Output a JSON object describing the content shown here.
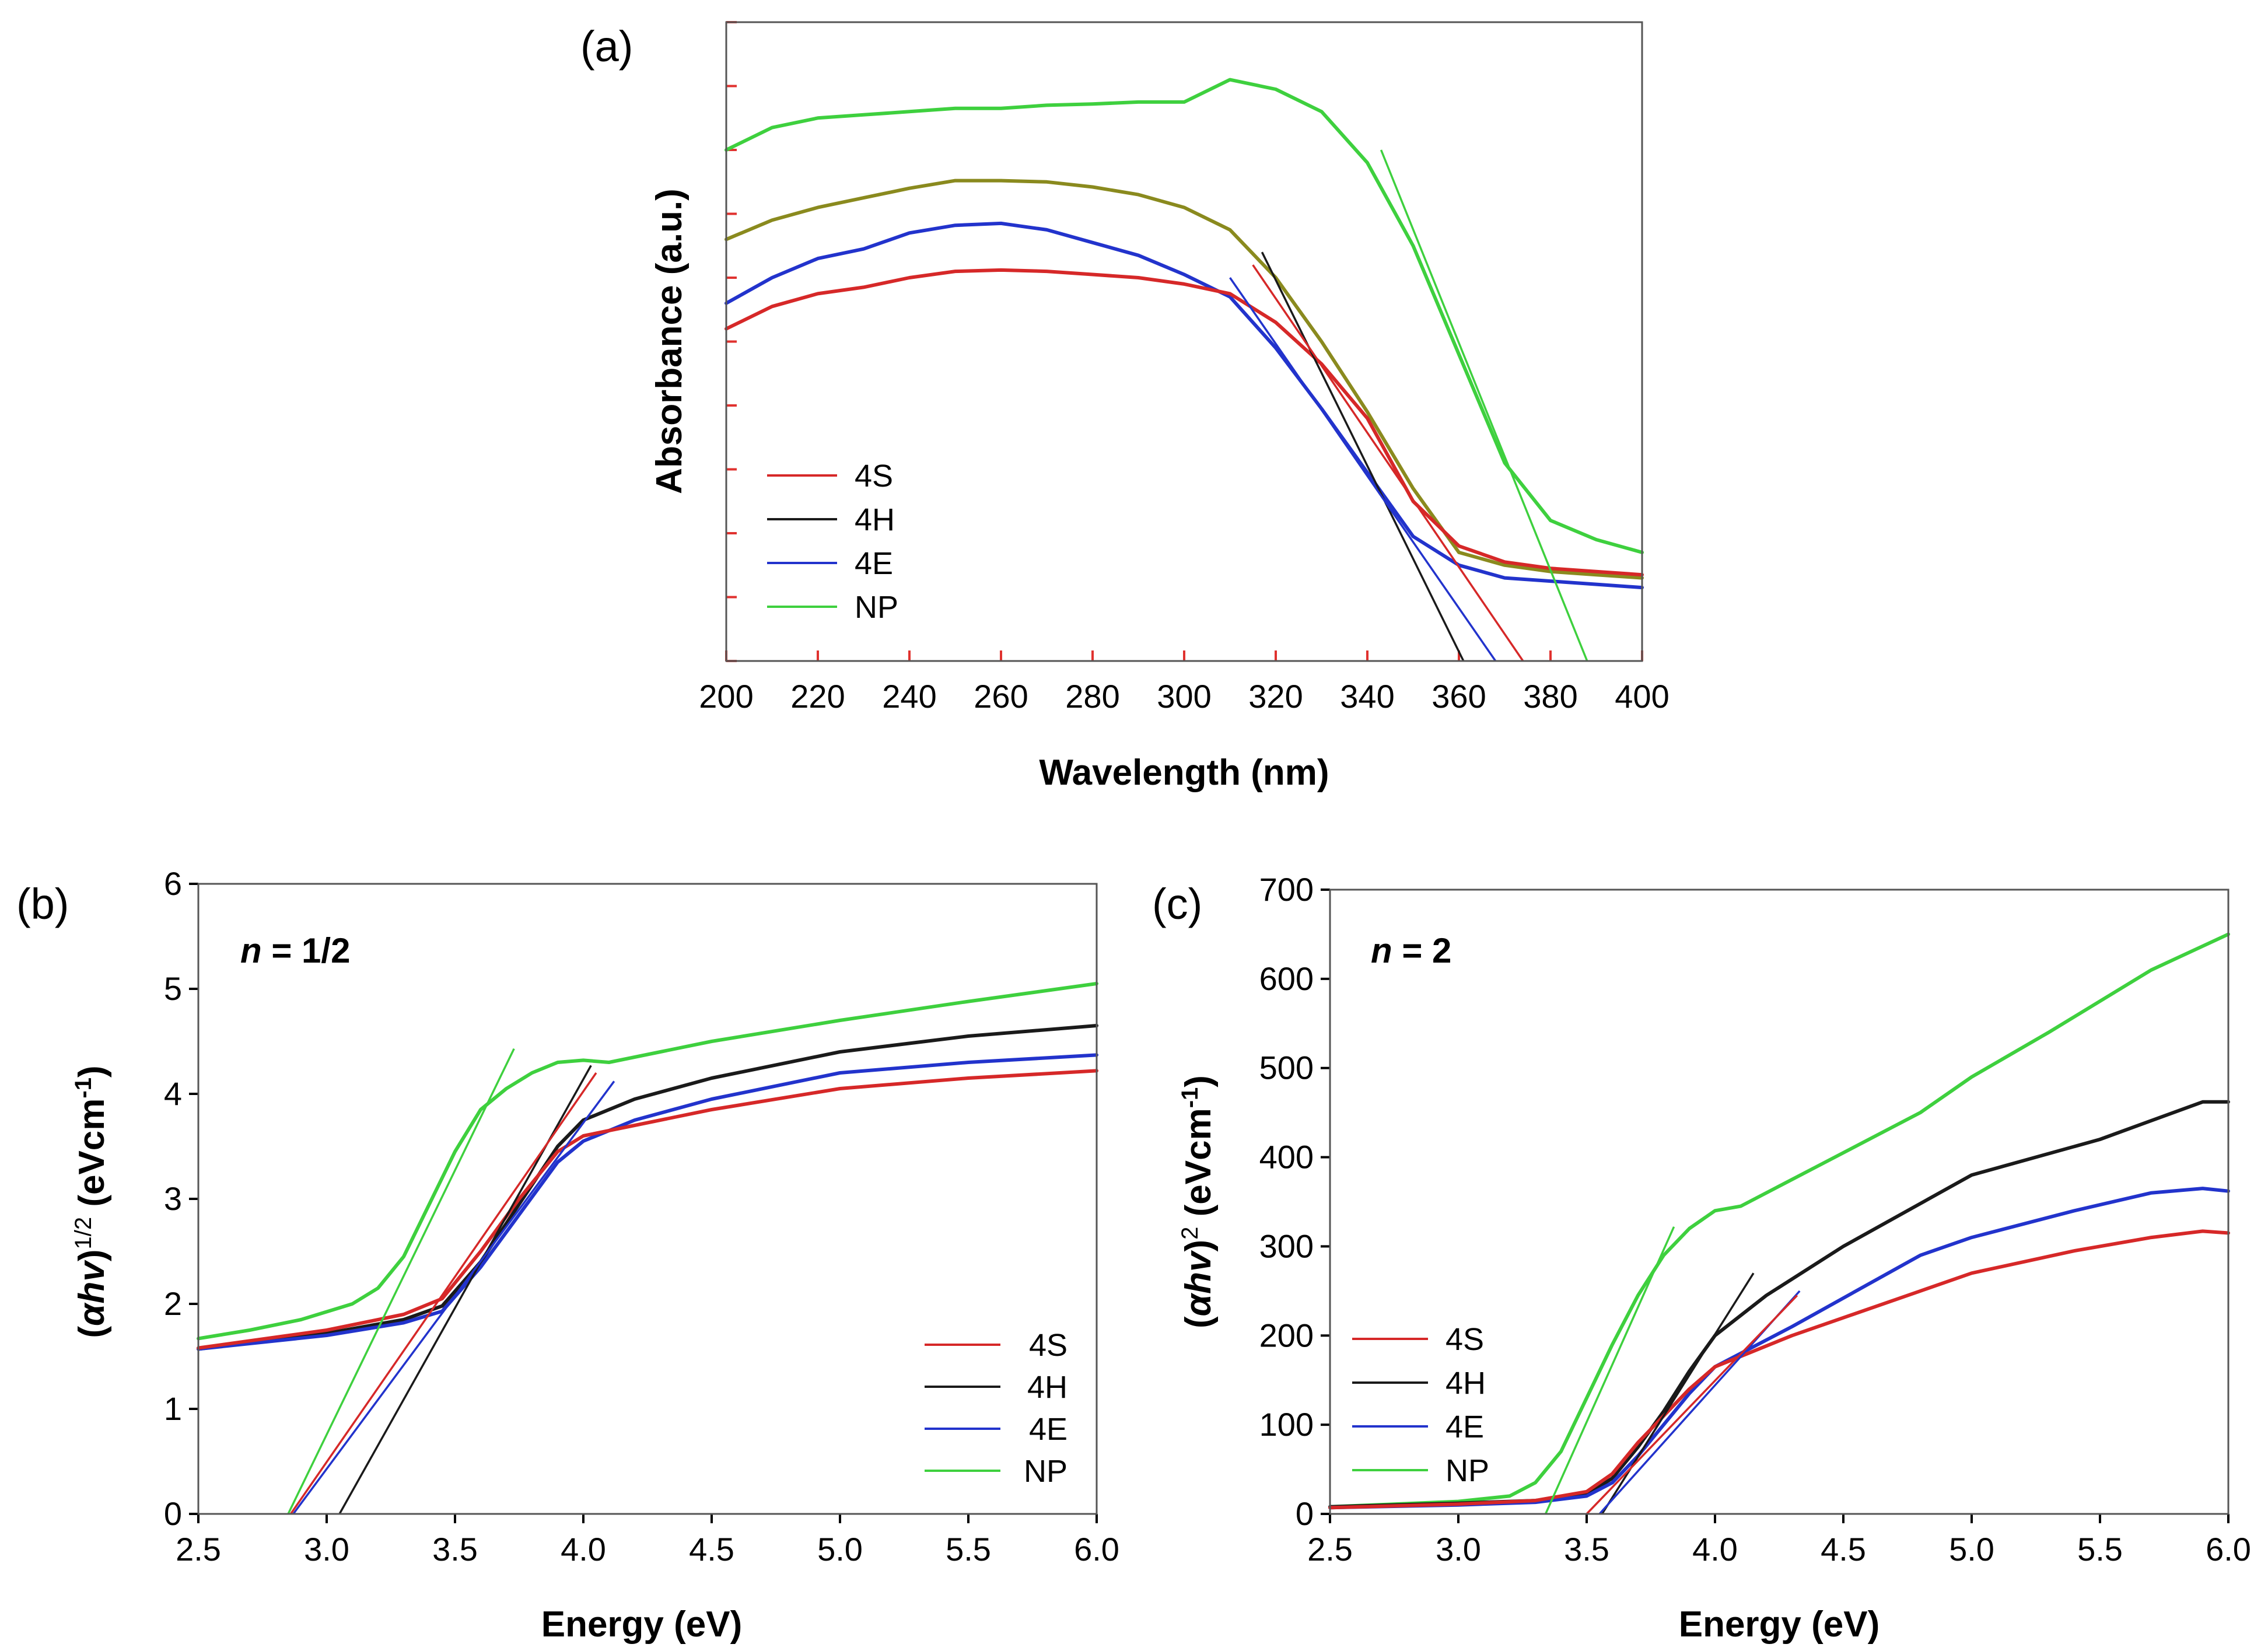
{
  "colors": {
    "4S": "#d62828",
    "4H": "#1a1a1a",
    "4E": "#2233cc",
    "NP": "#3ed03e",
    "4H_a": "#8a8a1e",
    "tick_a": "#e0322f"
  },
  "chart_data": [
    {
      "id": "a",
      "type": "line",
      "panel_label": "(a)",
      "xlabel": "Wavelength (nm)",
      "ylabel": "Absorbance (a.u.)",
      "xlim": [
        200,
        400
      ],
      "ylim": [
        0,
        10
      ],
      "xticks": [
        200,
        220,
        240,
        260,
        280,
        300,
        320,
        340,
        360,
        380,
        400
      ],
      "yticks": [
        0,
        1,
        2,
        3,
        4,
        5,
        6,
        7,
        8,
        9,
        10
      ],
      "ytick_labels_shown": false,
      "legend": {
        "position": "bottom-left",
        "entries": [
          "4S",
          "4H",
          "4E",
          "NP"
        ]
      },
      "series": [
        {
          "name": "NP",
          "x": [
            200,
            210,
            220,
            230,
            240,
            250,
            260,
            270,
            280,
            290,
            300,
            310,
            320,
            330,
            340,
            350,
            360,
            370,
            380,
            390,
            400
          ],
          "y": [
            8.0,
            8.35,
            8.5,
            8.55,
            8.6,
            8.65,
            8.65,
            8.7,
            8.72,
            8.75,
            8.75,
            9.1,
            8.95,
            8.6,
            7.8,
            6.5,
            4.8,
            3.1,
            2.2,
            1.9,
            1.7
          ]
        },
        {
          "name": "4H",
          "x": [
            200,
            210,
            220,
            230,
            240,
            250,
            260,
            270,
            280,
            290,
            300,
            310,
            320,
            330,
            340,
            350,
            360,
            370,
            380,
            390,
            400
          ],
          "y": [
            6.6,
            6.9,
            7.1,
            7.25,
            7.4,
            7.52,
            7.52,
            7.5,
            7.42,
            7.3,
            7.1,
            6.75,
            6.0,
            5.0,
            3.9,
            2.7,
            1.7,
            1.5,
            1.4,
            1.35,
            1.3
          ]
        },
        {
          "name": "4E",
          "x": [
            200,
            210,
            220,
            230,
            240,
            250,
            260,
            270,
            280,
            290,
            300,
            310,
            320,
            330,
            340,
            350,
            360,
            370,
            380,
            390,
            400
          ],
          "y": [
            5.6,
            6.0,
            6.3,
            6.45,
            6.7,
            6.82,
            6.85,
            6.75,
            6.55,
            6.35,
            6.05,
            5.7,
            4.9,
            3.95,
            2.95,
            1.95,
            1.5,
            1.3,
            1.25,
            1.2,
            1.15
          ]
        },
        {
          "name": "4S",
          "x": [
            200,
            210,
            220,
            230,
            240,
            250,
            260,
            270,
            280,
            290,
            300,
            310,
            320,
            330,
            340,
            350,
            360,
            370,
            380,
            390,
            400
          ],
          "y": [
            5.2,
            5.55,
            5.75,
            5.85,
            6.0,
            6.1,
            6.12,
            6.1,
            6.05,
            6.0,
            5.9,
            5.75,
            5.3,
            4.65,
            3.8,
            2.5,
            1.8,
            1.55,
            1.45,
            1.4,
            1.35
          ]
        }
      ],
      "fits": [
        {
          "name": "NP",
          "x": [
            343,
            388
          ],
          "y": [
            8.0,
            0
          ]
        },
        {
          "name": "4H",
          "x": [
            317,
            361
          ],
          "y": [
            6.4,
            0
          ]
        },
        {
          "name": "4E",
          "x": [
            310,
            368
          ],
          "y": [
            6.0,
            0
          ]
        },
        {
          "name": "4S",
          "x": [
            315,
            374
          ],
          "y": [
            6.2,
            0
          ]
        }
      ]
    },
    {
      "id": "b",
      "type": "line",
      "panel_label": "(b)",
      "annotation_n": "n",
      "annotation_rest": " = 1/2",
      "xlabel": "Energy (eV)",
      "ylabel_parts": [
        "(",
        "αhv",
        ")",
        "1/2",
        " (eVcm",
        "-1",
        ")"
      ],
      "xlim": [
        2.5,
        6.0
      ],
      "ylim": [
        0,
        6
      ],
      "xticks": [
        2.5,
        3.0,
        3.5,
        4.0,
        4.5,
        5.0,
        5.5,
        6.0
      ],
      "xtick_labels": [
        "2.5",
        "3.0",
        "3.5",
        "4.0",
        "4.5",
        "5.0",
        "5.5",
        "6.0"
      ],
      "yticks": [
        0,
        1,
        2,
        3,
        4,
        5,
        6
      ],
      "ytick_labels": [
        "0",
        "1",
        "2",
        "3",
        "4",
        "5",
        "6"
      ],
      "legend": {
        "position": "bottom-right",
        "entries": [
          "4S",
          "4H",
          "4E",
          "NP"
        ]
      },
      "series": [
        {
          "name": "NP",
          "x": [
            2.5,
            2.7,
            2.9,
            3.1,
            3.2,
            3.3,
            3.4,
            3.5,
            3.6,
            3.7,
            3.8,
            3.9,
            4.0,
            4.1,
            4.3,
            4.5,
            5.0,
            5.5,
            6.0
          ],
          "y": [
            1.67,
            1.75,
            1.85,
            2.0,
            2.15,
            2.45,
            2.95,
            3.45,
            3.85,
            4.05,
            4.2,
            4.3,
            4.32,
            4.3,
            4.4,
            4.5,
            4.7,
            4.88,
            5.05
          ]
        },
        {
          "name": "4H",
          "x": [
            2.5,
            3.0,
            3.3,
            3.45,
            3.6,
            3.75,
            3.9,
            4.0,
            4.2,
            4.5,
            5.0,
            5.5,
            6.0
          ],
          "y": [
            1.57,
            1.72,
            1.85,
            1.98,
            2.4,
            2.95,
            3.5,
            3.75,
            3.95,
            4.15,
            4.4,
            4.55,
            4.65
          ]
        },
        {
          "name": "4E",
          "x": [
            2.5,
            3.0,
            3.3,
            3.45,
            3.6,
            3.75,
            3.9,
            4.0,
            4.2,
            4.5,
            5.0,
            5.5,
            6.0
          ],
          "y": [
            1.57,
            1.7,
            1.82,
            1.93,
            2.35,
            2.85,
            3.35,
            3.55,
            3.75,
            3.95,
            4.2,
            4.3,
            4.37
          ]
        },
        {
          "name": "4S",
          "x": [
            2.5,
            3.0,
            3.3,
            3.45,
            3.6,
            3.75,
            3.9,
            4.0,
            4.2,
            4.5,
            5.0,
            5.5,
            6.0
          ],
          "y": [
            1.58,
            1.75,
            1.9,
            2.05,
            2.5,
            3.0,
            3.45,
            3.6,
            3.7,
            3.85,
            4.05,
            4.15,
            4.22
          ]
        }
      ],
      "fits": [
        {
          "name": "NP",
          "x": [
            2.85,
            3.73
          ],
          "y": [
            0,
            4.43
          ]
        },
        {
          "name": "4H",
          "x": [
            3.05,
            4.03
          ],
          "y": [
            0,
            4.27
          ]
        },
        {
          "name": "4E",
          "x": [
            2.87,
            4.12
          ],
          "y": [
            0,
            4.12
          ]
        },
        {
          "name": "4S",
          "x": [
            2.86,
            4.05
          ],
          "y": [
            0,
            4.2
          ]
        }
      ]
    },
    {
      "id": "c",
      "type": "line",
      "panel_label": "(c)",
      "annotation_n": "n",
      "annotation_rest": " = 2",
      "xlabel": "Energy (eV)",
      "ylabel_parts": [
        "(",
        "αhv",
        ")",
        "2",
        " (eVcm",
        "-1",
        ")"
      ],
      "xlim": [
        2.5,
        6.0
      ],
      "ylim": [
        0,
        700
      ],
      "xticks": [
        2.5,
        3.0,
        3.5,
        4.0,
        4.5,
        5.0,
        5.5,
        6.0
      ],
      "xtick_labels": [
        "2.5",
        "3.0",
        "3.5",
        "4.0",
        "4.5",
        "5.0",
        "5.5",
        "6.0"
      ],
      "yticks": [
        0,
        100,
        200,
        300,
        400,
        500,
        600,
        700
      ],
      "ytick_labels": [
        "0",
        "100",
        "200",
        "300",
        "400",
        "500",
        "600",
        "700"
      ],
      "legend": {
        "position": "bottom-left",
        "entries": [
          "4S",
          "4H",
          "4E",
          "NP"
        ]
      },
      "series": [
        {
          "name": "NP",
          "x": [
            2.5,
            3.0,
            3.2,
            3.3,
            3.4,
            3.5,
            3.6,
            3.7,
            3.8,
            3.9,
            4.0,
            4.1,
            4.4,
            4.8,
            5.0,
            5.3,
            5.7,
            6.0
          ],
          "y": [
            8,
            14,
            20,
            35,
            70,
            130,
            190,
            245,
            290,
            320,
            340,
            345,
            390,
            450,
            490,
            540,
            610,
            650
          ]
        },
        {
          "name": "4H",
          "x": [
            2.5,
            3.0,
            3.3,
            3.5,
            3.6,
            3.7,
            3.8,
            3.9,
            4.0,
            4.2,
            4.5,
            5.0,
            5.5,
            5.9,
            6.0
          ],
          "y": [
            8,
            12,
            15,
            22,
            40,
            75,
            115,
            160,
            200,
            245,
            300,
            380,
            420,
            462,
            462
          ]
        },
        {
          "name": "4E",
          "x": [
            2.5,
            3.0,
            3.3,
            3.5,
            3.6,
            3.7,
            3.8,
            3.9,
            4.0,
            4.3,
            4.8,
            5.0,
            5.4,
            5.7,
            5.9,
            6.0
          ],
          "y": [
            7,
            10,
            13,
            20,
            35,
            65,
            100,
            135,
            165,
            210,
            290,
            310,
            340,
            360,
            365,
            362
          ]
        },
        {
          "name": "4S",
          "x": [
            2.5,
            3.0,
            3.3,
            3.5,
            3.6,
            3.7,
            3.8,
            3.9,
            4.0,
            4.3,
            4.8,
            5.0,
            5.4,
            5.7,
            5.9,
            6.0
          ],
          "y": [
            7,
            11,
            15,
            25,
            45,
            80,
            110,
            140,
            165,
            200,
            250,
            270,
            295,
            310,
            317,
            315
          ]
        }
      ],
      "fits": [
        {
          "name": "NP",
          "x": [
            3.34,
            3.84
          ],
          "y": [
            0,
            322
          ]
        },
        {
          "name": "4H",
          "x": [
            3.56,
            4.15
          ],
          "y": [
            0,
            270
          ]
        },
        {
          "name": "4E",
          "x": [
            3.55,
            4.33
          ],
          "y": [
            0,
            250
          ]
        },
        {
          "name": "4S",
          "x": [
            3.5,
            4.32
          ],
          "y": [
            0,
            245
          ]
        }
      ]
    }
  ]
}
